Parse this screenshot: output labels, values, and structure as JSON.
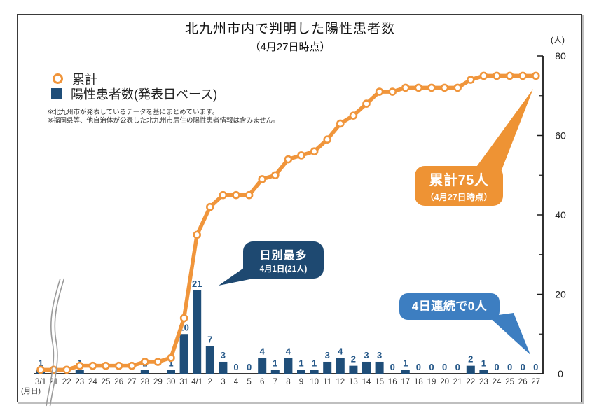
{
  "title": "北九州市内で判明した陽性患者数",
  "subtitle": "（4月27日時点）",
  "unit_label": "(人)",
  "axis_caption": "(月日)",
  "legend": {
    "cumulative_label": "累計",
    "daily_label": "陽性患者数(発表日ベース)"
  },
  "notes": [
    "※北九州市が発表しているデータを基にまとめています。",
    "※福岡県等、他自治体が公表した北九州市居住の陽性患者情報は含みません。"
  ],
  "callouts": {
    "cumulative_total": {
      "line1": "累計75人",
      "line2": "（4月27日時点）",
      "color": "#EE9334"
    },
    "daily_max": {
      "line1": "日別最多",
      "line2": "4月1日(21人)",
      "color": "#1E4971"
    },
    "zero_streak": {
      "line1": "4日連続で0人",
      "color": "#3D7EC1"
    }
  },
  "chart_data": {
    "type": "bar",
    "title": "北九州市内で判明した陽性患者数（4月27日時点）",
    "xlabel": "(月日)",
    "ylabel": "(人)",
    "ylim": [
      0,
      80
    ],
    "y_major_ticks": [
      0,
      20,
      40,
      60,
      80
    ],
    "y_minor_ticks": [
      10,
      30,
      50,
      70
    ],
    "grid": false,
    "legend_position": "top-left",
    "axis_break_after_first_category": true,
    "categories": [
      "3/1",
      "21",
      "22",
      "23",
      "24",
      "25",
      "26",
      "27",
      "28",
      "29",
      "30",
      "31",
      "4/1",
      "2",
      "3",
      "4",
      "5",
      "6",
      "7",
      "8",
      "9",
      "10",
      "11",
      "12",
      "13",
      "14",
      "15",
      "16",
      "17",
      "18",
      "19",
      "20",
      "21",
      "22",
      "23",
      "24",
      "25",
      "26",
      "27"
    ],
    "series": [
      {
        "name": "陽性患者数(発表日ベース)",
        "type": "bar",
        "color": "#1F4E79",
        "label_color": "#235687",
        "values": [
          1,
          0,
          0,
          1,
          0,
          0,
          0,
          0,
          1,
          0,
          1,
          10,
          21,
          7,
          3,
          0,
          0,
          4,
          1,
          4,
          1,
          1,
          3,
          4,
          2,
          3,
          3,
          0,
          1,
          0,
          0,
          0,
          0,
          2,
          1,
          0,
          0,
          0,
          0
        ],
        "labels": [
          "1",
          "",
          "",
          "1",
          "",
          "",
          "",
          "",
          "1",
          "",
          "1",
          "10",
          "21",
          "7",
          "3",
          "0",
          "0",
          "4",
          "1",
          "4",
          "1",
          "1",
          "3",
          "4",
          "2",
          "3",
          "3",
          "0",
          "1",
          "0",
          "0",
          "0",
          "0",
          "2",
          "1",
          "0",
          "0",
          "0",
          "0"
        ]
      },
      {
        "name": "累計",
        "type": "line",
        "color": "#F0953B",
        "marker": "open-circle",
        "values": [
          1,
          1,
          1,
          2,
          2,
          2,
          2,
          2,
          3,
          3,
          4,
          14,
          35,
          42,
          45,
          45,
          45,
          49,
          50,
          54,
          55,
          56,
          59,
          63,
          65,
          68,
          71,
          71,
          72,
          72,
          72,
          72,
          72,
          74,
          75,
          75,
          75,
          75,
          75
        ]
      }
    ]
  }
}
